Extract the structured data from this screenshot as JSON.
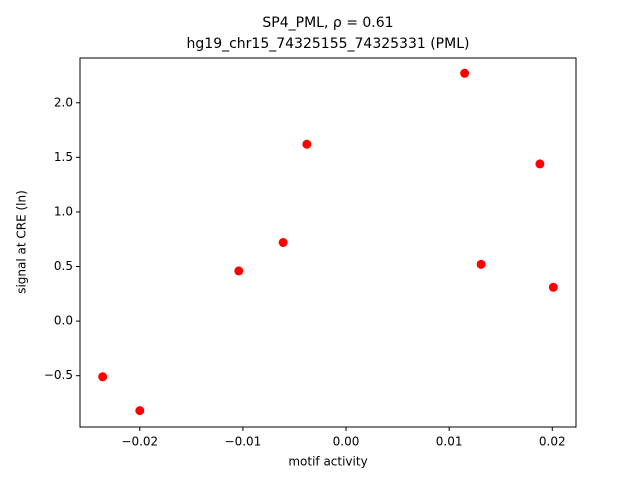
{
  "chart_data": {
    "type": "scatter",
    "title": "SP4_PML, ρ = 0.61",
    "subtitle": "hg19_chr15_74325155_74325331 (PML)",
    "x_label": "motif activity",
    "y_label": "signal at CRE (ln)",
    "color": "#ff0000",
    "x": [
      -0.0236,
      -0.02,
      -0.0104,
      -0.0061,
      -0.0038,
      0.0115,
      0.0131,
      0.0188,
      0.0201
    ],
    "values": [
      -0.51,
      -0.82,
      0.46,
      0.72,
      1.62,
      2.27,
      0.52,
      1.44,
      0.31
    ],
    "xlim": [
      -0.0258,
      0.0223
    ],
    "ylim": [
      -0.97,
      2.41
    ],
    "xticks": [
      {
        "value": -0.02,
        "label": "−0.02"
      },
      {
        "value": -0.01,
        "label": "−0.01"
      },
      {
        "value": 0,
        "label": "0.00"
      },
      0.01,
      0.02
    ],
    "yticks": [
      {
        "value": -0.5,
        "label": "−0.5"
      },
      {
        "value": 0,
        "label": "0.0"
      },
      0.5,
      {
        "value": 1,
        "label": "1.0"
      },
      1.5,
      {
        "value": 2,
        "label": "2.0"
      }
    ],
    "grid": false
  }
}
